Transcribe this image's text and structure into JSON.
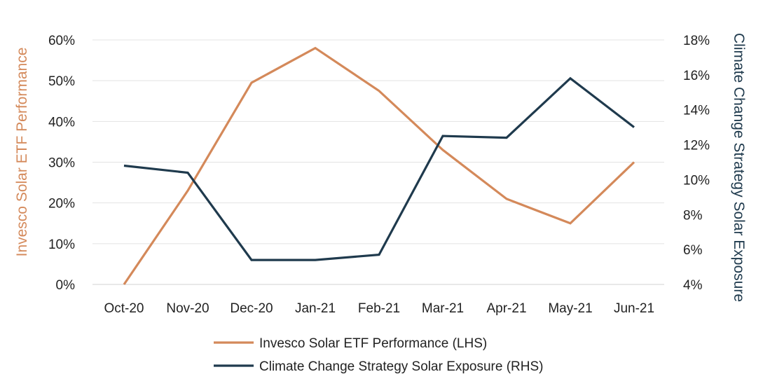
{
  "chart_data": {
    "type": "line",
    "categories": [
      "Oct-20",
      "Nov-20",
      "Dec-20",
      "Jan-21",
      "Feb-21",
      "Mar-21",
      "Apr-21",
      "May-21",
      "Jun-21"
    ],
    "series": [
      {
        "name": "Invesco Solar ETF Performance (LHS)",
        "axis": "left",
        "color": "#D4895A",
        "values": [
          0,
          23,
          49.5,
          58,
          47.5,
          33,
          21,
          15,
          30
        ]
      },
      {
        "name": "Climate Change Strategy Solar Exposure (RHS)",
        "axis": "right",
        "color": "#1F3A4D",
        "values": [
          10.8,
          10.4,
          5.4,
          5.4,
          5.7,
          12.5,
          12.4,
          15.8,
          13.0
        ]
      }
    ],
    "left_axis": {
      "label": "Invesco Solar ETF Performance",
      "color": "#D4895A",
      "ylim": [
        0,
        60
      ],
      "ticks": [
        0,
        10,
        20,
        30,
        40,
        50,
        60
      ],
      "tick_labels": [
        "0%",
        "10%",
        "20%",
        "30%",
        "40%",
        "50%",
        "60%"
      ]
    },
    "right_axis": {
      "label": "Climate Change Strategy Solar Exposure",
      "color": "#1F3A4D",
      "ylim": [
        4,
        18
      ],
      "ticks": [
        4,
        6,
        8,
        10,
        12,
        14,
        16,
        18
      ],
      "tick_labels": [
        "4%",
        "6%",
        "8%",
        "10%",
        "12%",
        "14%",
        "16%",
        "18%"
      ]
    },
    "grid": true,
    "legend_position": "bottom-center",
    "gridline_color": "#E3E3E3",
    "tick_text_color": "#222222"
  }
}
